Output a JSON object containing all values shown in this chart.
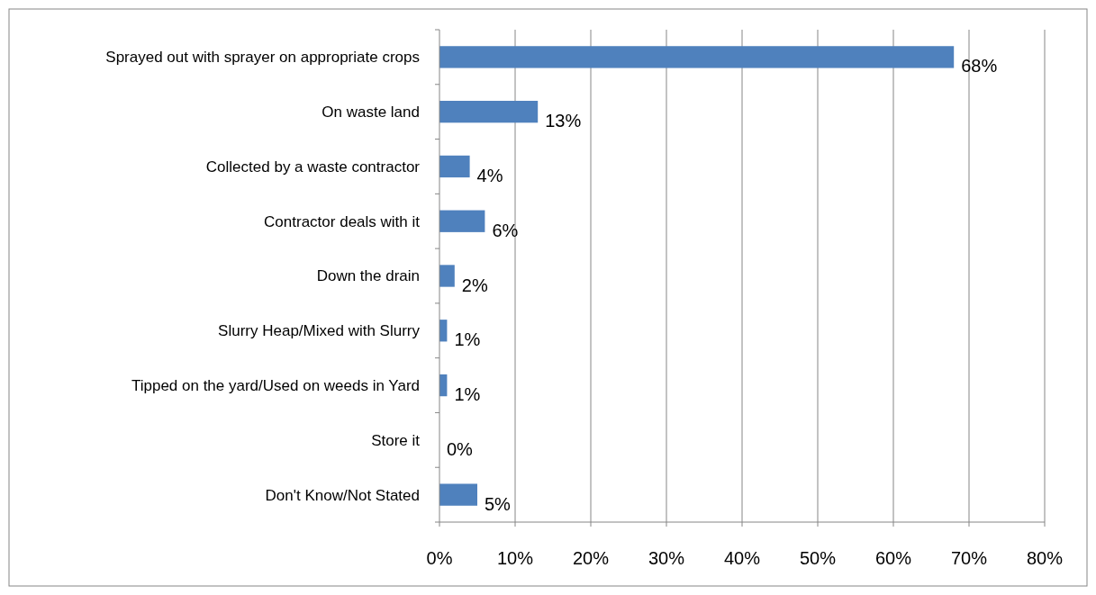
{
  "chart_data": {
    "type": "bar",
    "orientation": "horizontal",
    "categories": [
      "Sprayed out with sprayer on appropriate crops",
      "On waste land",
      "Collected by a waste contractor",
      "Contractor deals with it",
      "Down the drain",
      "Slurry Heap/Mixed with Slurry",
      "Tipped on the yard/Used on weeds in Yard",
      "Store it",
      "Don't Know/Not Stated"
    ],
    "values": [
      68,
      13,
      4,
      6,
      2,
      1,
      1,
      0,
      5
    ],
    "value_labels": [
      "68%",
      "13%",
      "4%",
      "6%",
      "2%",
      "1%",
      "1%",
      "0%",
      "5%"
    ],
    "color": "#4f81bd",
    "xlim": [
      0,
      80
    ],
    "xticks": [
      {
        "value": 0,
        "label": "0%"
      },
      {
        "value": 10,
        "label": "10%"
      },
      {
        "value": 20,
        "label": "20%"
      },
      {
        "value": 30,
        "label": "30%"
      },
      {
        "value": 40,
        "label": "40%"
      },
      {
        "value": 50,
        "label": "50%"
      },
      {
        "value": 60,
        "label": "60%"
      },
      {
        "value": 70,
        "label": "70%"
      },
      {
        "value": 80,
        "label": "80%"
      }
    ],
    "grid": "x"
  }
}
